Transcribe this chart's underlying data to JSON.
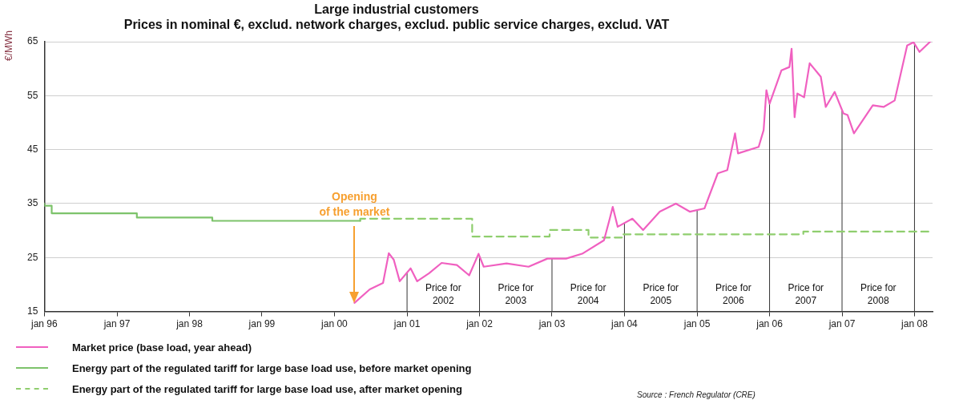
{
  "chart_data": {
    "type": "line",
    "title": "Large industrial customers",
    "subtitle": "Prices in nominal €, exclud. network charges, exclud. public service charges, exclud. VAT",
    "ylabel": "€/MWh",
    "xlim": [
      "1996-01-01",
      "2008-04-01"
    ],
    "xticks": [
      {
        "value": "1996-01-01",
        "label": "jan 96"
      },
      {
        "value": "1997-01-01",
        "label": "jan 97"
      },
      {
        "value": "1998-01-01",
        "label": "jan 98"
      },
      {
        "value": "1999-01-01",
        "label": "jan 99"
      },
      {
        "value": "2000-01-01",
        "label": "jan 00"
      },
      {
        "value": "2001-01-01",
        "label": "jan 01"
      },
      {
        "value": "2002-01-01",
        "label": "jan 02"
      },
      {
        "value": "2003-01-01",
        "label": "jan 03"
      },
      {
        "value": "2004-01-01",
        "label": "jan 04"
      },
      {
        "value": "2005-01-01",
        "label": "jan 05"
      },
      {
        "value": "2006-01-01",
        "label": "jan 06"
      },
      {
        "value": "2007-01-01",
        "label": "jan 07"
      },
      {
        "value": "2008-01-01",
        "label": "jan 08"
      }
    ],
    "ylim": [
      15,
      65
    ],
    "yticks": [
      15,
      25,
      35,
      45,
      55,
      65
    ],
    "grid": "y",
    "legend": "bottom",
    "marker": "none",
    "series": [
      {
        "name": "Market price (base load, year ahead)",
        "color": "#f060c0",
        "x": [
          "2000-04-11",
          "2000-06-27",
          "2000-09-02",
          "2000-10-01",
          "2000-10-26",
          "2000-11-25",
          "2001-01-19",
          "2001-02-21",
          "2001-04-22",
          "2001-06-24",
          "2001-09-09",
          "2001-11-10",
          "2001-12-27",
          "2002-01-22",
          "2002-05-17",
          "2002-09-05",
          "2002-12-09",
          "2003-03-13",
          "2003-06-02",
          "2003-09-20",
          "2003-10-19",
          "2003-11-03",
          "2003-11-28",
          "2004-02-10",
          "2004-04-04",
          "2004-06-27",
          "2004-09-16",
          "2004-11-25",
          "2005-02-07",
          "2005-04-15",
          "2005-06-02",
          "2005-07-11",
          "2005-07-26",
          "2005-11-07",
          "2005-12-02",
          "2005-12-16",
          "2006-01-01",
          "2006-03-02",
          "2006-04-11",
          "2006-04-22",
          "2006-05-07",
          "2006-05-21",
          "2006-06-24",
          "2006-07-22",
          "2006-09-16",
          "2006-10-11",
          "2006-11-25",
          "2007-01-08",
          "2007-01-29",
          "2007-03-02",
          "2007-06-05",
          "2007-07-29",
          "2007-09-23",
          "2007-11-25",
          "2007-12-27",
          "2008-01-26",
          "2008-03-20"
        ],
        "values": [
          16.6,
          19.1,
          20.3,
          25.8,
          24.6,
          20.6,
          23.0,
          20.6,
          22.1,
          24.0,
          23.6,
          21.7,
          25.7,
          23.3,
          23.9,
          23.3,
          24.8,
          24.8,
          25.7,
          28.2,
          32.2,
          34.4,
          30.7,
          32.2,
          30.1,
          33.5,
          35.0,
          33.5,
          34.1,
          40.6,
          41.2,
          48.0,
          44.3,
          45.5,
          48.6,
          56.0,
          53.5,
          59.7,
          60.3,
          63.7,
          51.0,
          55.4,
          54.7,
          61.0,
          58.5,
          52.9,
          55.7,
          51.7,
          51.4,
          48.0,
          53.2,
          52.9,
          54.1,
          64.3,
          64.9,
          63.1,
          65.0
        ]
      },
      {
        "name": "Energy part of the regulated tariff for large base load use, before market opening",
        "color": "#7dc36b",
        "type": "step",
        "x": [
          "1996-01-01",
          "1996-02-07",
          "1997-04-11",
          "1998-04-26",
          "1999-05-03",
          "2000-05-10"
        ],
        "values": [
          35,
          34.6,
          33.2,
          32.4,
          31.8,
          31.8
        ]
      },
      {
        "name": "Energy part of the regulated tariff for large base load use, after market opening",
        "color": "#8fce6e",
        "type": "step",
        "line_style": "dashed",
        "x": [
          "2000-05-10",
          "2001-11-25",
          "2002-12-20",
          "2003-07-04",
          "2003-12-24",
          "2006-06-20",
          "2007-06-05",
          "2008-03-13"
        ],
        "values": [
          31.8,
          32.2,
          28.9,
          30.1,
          28.7,
          29.3,
          29.8,
          29.8
        ]
      }
    ],
    "ref_lines": [
      {
        "axis": "x",
        "value": "2001-01-01"
      },
      {
        "axis": "x",
        "value": "2002-01-01"
      },
      {
        "axis": "x",
        "value": "2003-01-01"
      },
      {
        "axis": "x",
        "value": "2004-01-01"
      },
      {
        "axis": "x",
        "value": "2005-01-01"
      },
      {
        "axis": "x",
        "value": "2006-01-01"
      },
      {
        "axis": "x",
        "value": "2007-01-01"
      },
      {
        "axis": "x",
        "value": "2008-01-01"
      }
    ],
    "annotations": [
      "Opening of the market",
      "Price for 2002",
      "Price for 2003",
      "Price for 2004",
      "Price for 2005",
      "Price for 2006",
      "Price for 2007",
      "Price for 2008",
      "Source : French Regulator (CRE)"
    ]
  }
}
